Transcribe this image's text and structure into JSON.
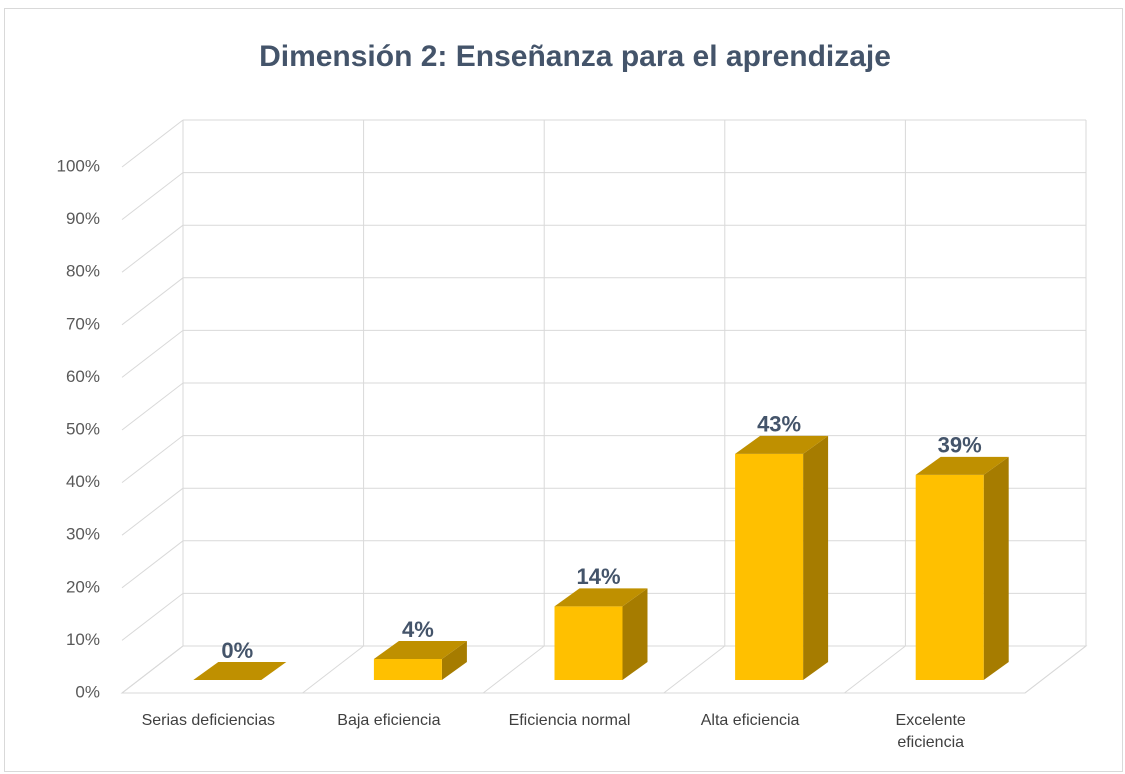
{
  "chart_data": {
    "type": "bar3d",
    "title": "Dimensión 2: Enseñanza para el aprendizaje",
    "categories": [
      "Serias deficiencias",
      "Baja eficiencia",
      "Eficiencia normal",
      "Alta eficiencia",
      "Excelente eficiencia"
    ],
    "values": [
      0,
      4,
      14,
      43,
      39
    ],
    "value_labels": [
      "0%",
      "4%",
      "14%",
      "43%",
      "39%"
    ],
    "color": "#ffc000",
    "ylim": [
      0,
      100
    ],
    "yticks": [
      {
        "value": 0,
        "label": "0%"
      },
      {
        "value": 10,
        "label": "10%"
      },
      {
        "value": 20,
        "label": "20%"
      },
      {
        "value": 30,
        "label": "30%"
      },
      {
        "value": 40,
        "label": "40%"
      },
      {
        "value": 50,
        "label": "50%"
      },
      {
        "value": 60,
        "label": "60%"
      },
      {
        "value": 70,
        "label": "70%"
      },
      {
        "value": 80,
        "label": "80%"
      },
      {
        "value": 90,
        "label": "90%"
      },
      {
        "value": 100,
        "label": "100%"
      }
    ],
    "grid": true
  }
}
